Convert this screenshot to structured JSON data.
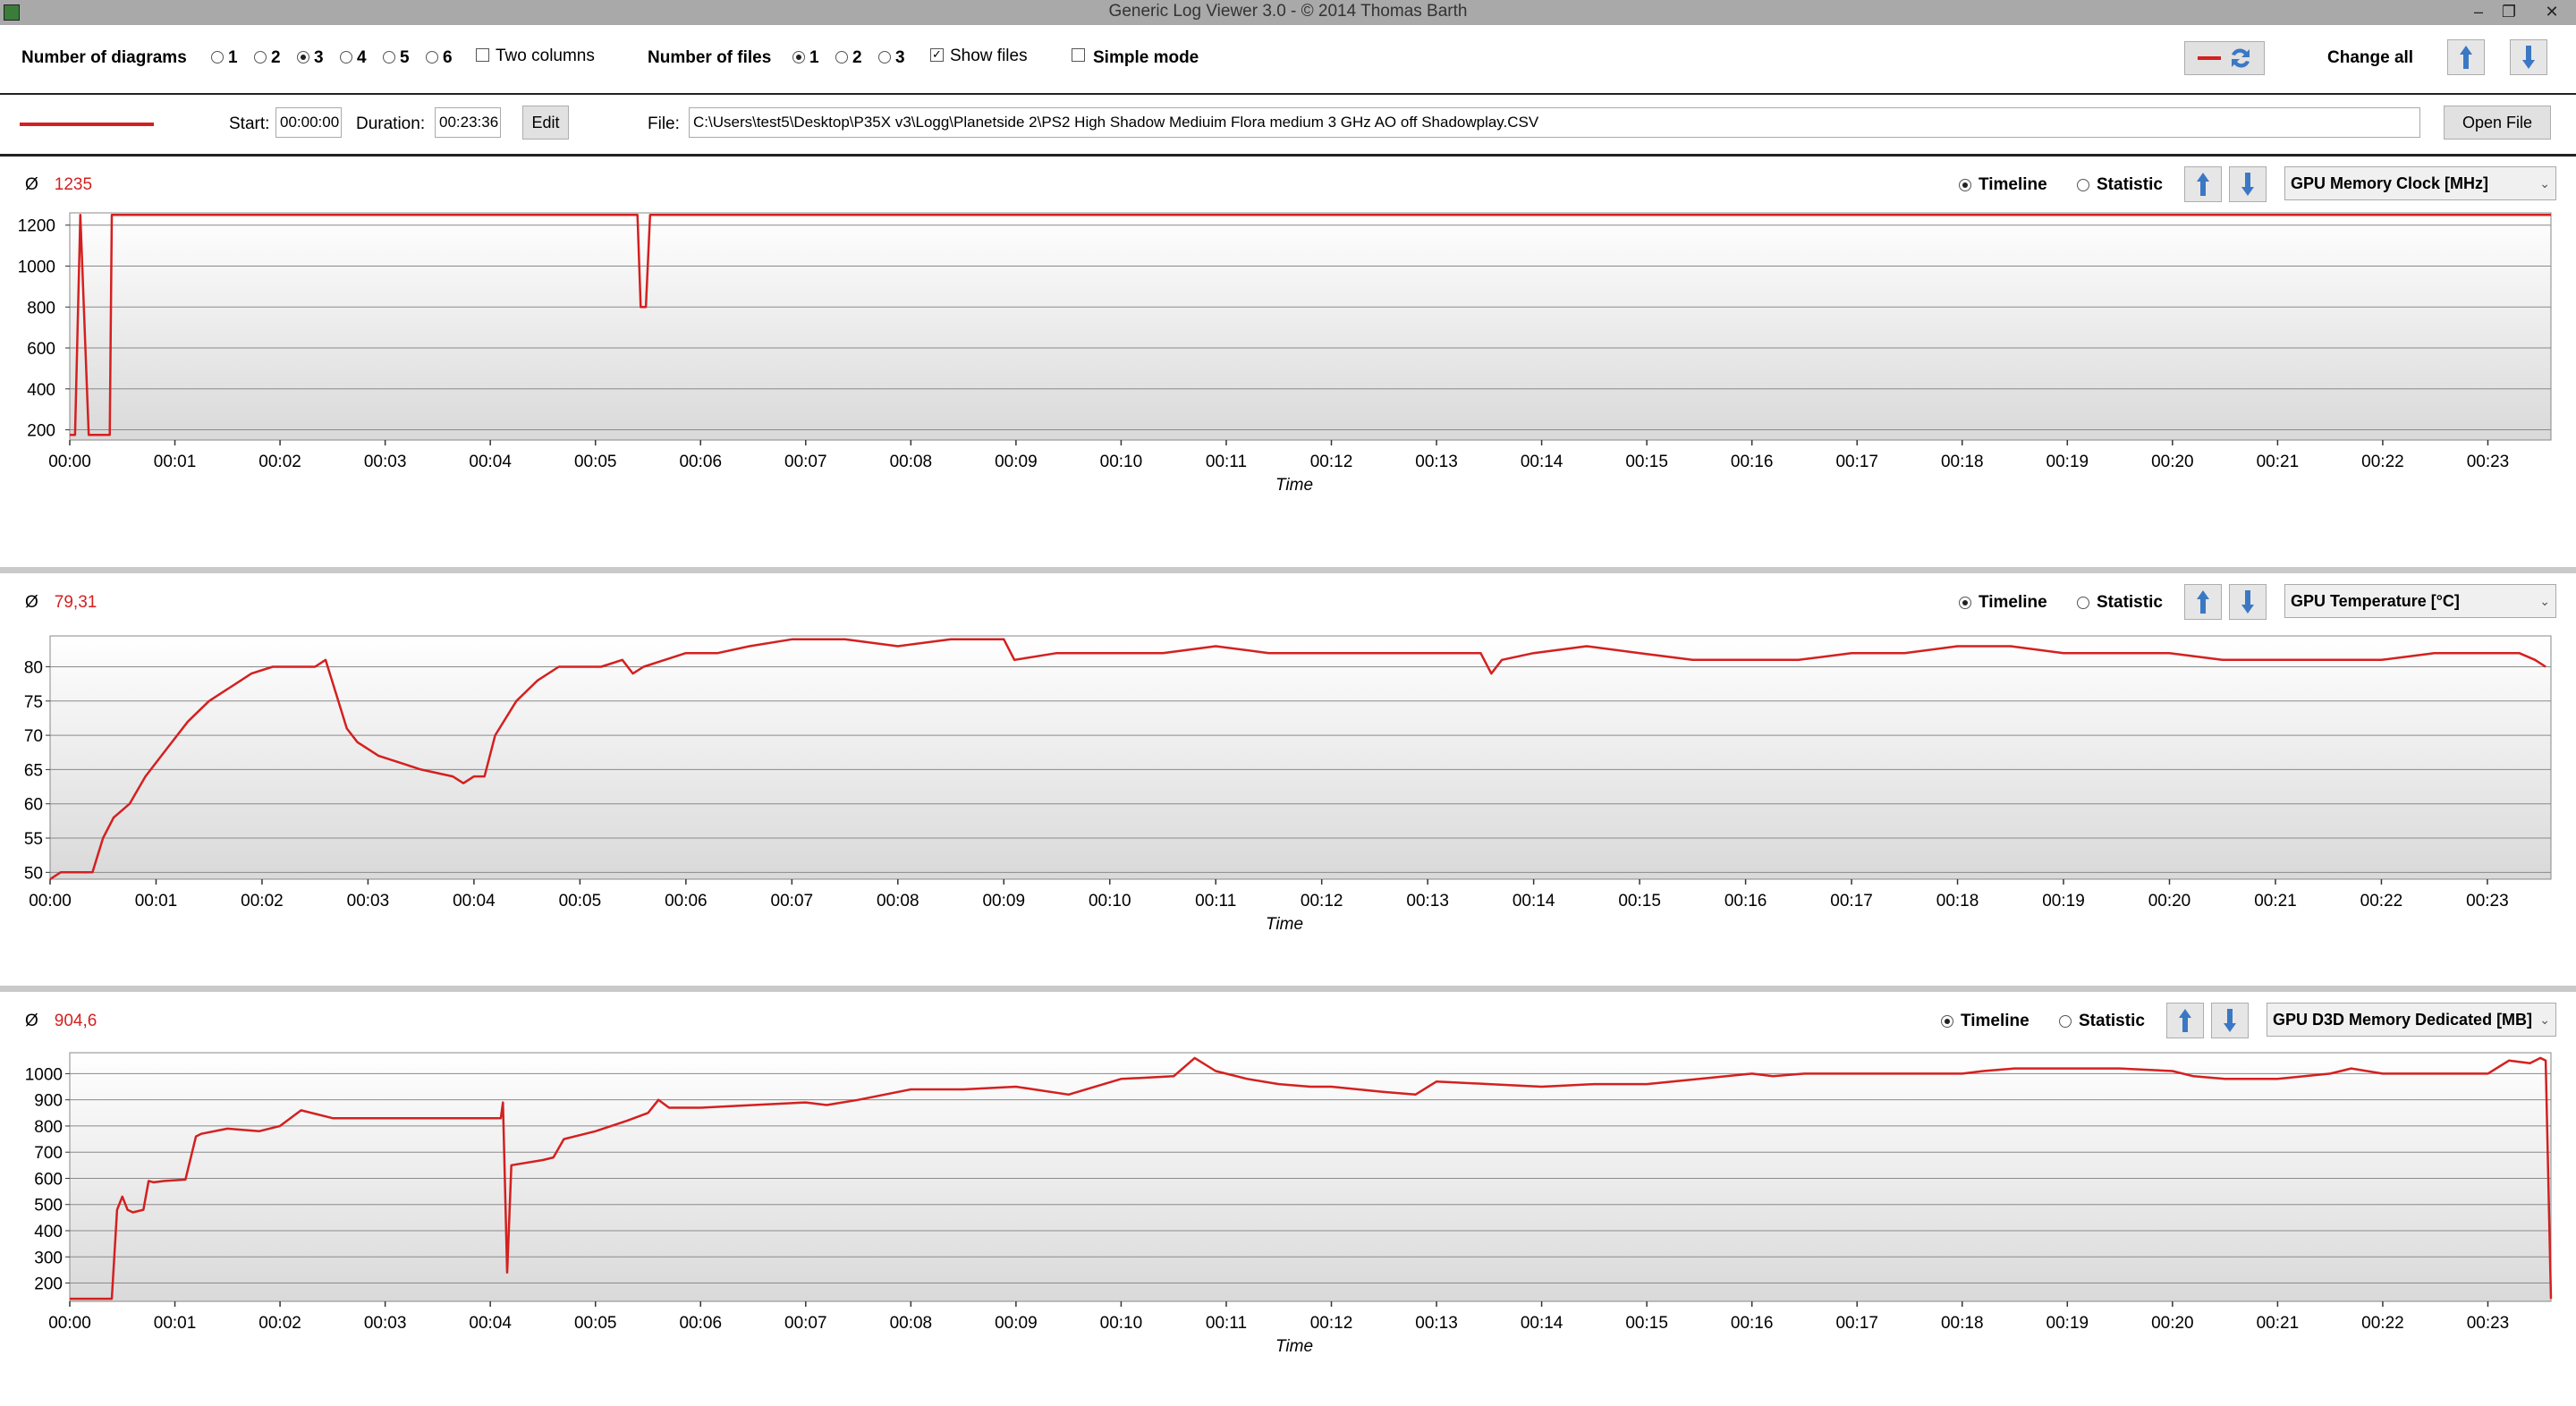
{
  "window": {
    "title": "Generic Log Viewer 3.0 - © 2014 Thomas Barth"
  },
  "toolbar": {
    "diagrams_label": "Number of diagrams",
    "diagram_options": [
      "1",
      "2",
      "3",
      "4",
      "5",
      "6"
    ],
    "diagrams_selected": "3",
    "two_columns_label": "Two columns",
    "two_columns_checked": false,
    "files_label": "Number of files",
    "file_options": [
      "1",
      "2",
      "3"
    ],
    "files_selected": "1",
    "show_files_label": "Show files",
    "show_files_checked": true,
    "simple_mode_label": "Simple mode",
    "simple_mode_checked": false,
    "change_all_label": "Change all"
  },
  "filebar": {
    "line_color": "#d42020",
    "start_label": "Start:",
    "start_value": "00:00:00",
    "duration_label": "Duration:",
    "duration_value": "00:23:36",
    "edit_label": "Edit",
    "file_label": "File:",
    "file_path": "C:\\Users\\test5\\Desktop\\P35X v3\\Logg\\Planetside 2\\PS2 High Shadow Mediuim Flora medium 3 GHz AO off Shadowplay.CSV",
    "open_file_label": "Open File"
  },
  "panels": [
    {
      "avg_symbol": "Ø",
      "avg_value": "1235",
      "timeline_label": "Timeline",
      "statistic_label": "Statistic",
      "mode": "timeline",
      "sensor": "GPU Memory Clock [MHz]"
    },
    {
      "avg_symbol": "Ø",
      "avg_value": "79,31",
      "timeline_label": "Timeline",
      "statistic_label": "Statistic",
      "mode": "timeline",
      "sensor": "GPU Temperature [°C]"
    },
    {
      "avg_symbol": "Ø",
      "avg_value": "904,6",
      "timeline_label": "Timeline",
      "statistic_label": "Statistic",
      "mode": "timeline",
      "sensor": "GPU D3D Memory Dedicated [MB]"
    }
  ],
  "colors": {
    "series": "#d42020",
    "accent_arrow": "#3b78c4"
  },
  "chart_data": [
    {
      "type": "line",
      "xlabel": "Time",
      "ylabel": "",
      "x_ticks": [
        "00:00",
        "00:01",
        "00:02",
        "00:03",
        "00:04",
        "00:05",
        "00:06",
        "00:07",
        "00:08",
        "00:09",
        "00:10",
        "00:11",
        "00:12",
        "00:13",
        "00:14",
        "00:15",
        "00:16",
        "00:17",
        "00:18",
        "00:19",
        "00:20",
        "00:21",
        "00:22",
        "00:23"
      ],
      "y_ticks": [
        200,
        400,
        600,
        800,
        1000,
        1200
      ],
      "xlim": [
        0,
        23.6
      ],
      "ylim": [
        150,
        1260
      ],
      "grid": true,
      "series": [
        {
          "x": [
            0,
            0.05,
            0.1,
            0.18,
            0.3,
            0.38,
            0.4,
            5.4,
            5.43,
            5.48,
            5.52,
            23.6
          ],
          "y": [
            175,
            175,
            1250,
            175,
            175,
            175,
            1250,
            1250,
            800,
            800,
            1250,
            1250
          ]
        }
      ]
    },
    {
      "type": "line",
      "xlabel": "Time",
      "ylabel": "",
      "x_ticks": [
        "00:00",
        "00:01",
        "00:02",
        "00:03",
        "00:04",
        "00:05",
        "00:06",
        "00:07",
        "00:08",
        "00:09",
        "00:10",
        "00:11",
        "00:12",
        "00:13",
        "00:14",
        "00:15",
        "00:16",
        "00:17",
        "00:18",
        "00:19",
        "00:20",
        "00:21",
        "00:22",
        "00:23"
      ],
      "y_ticks": [
        50,
        55,
        60,
        65,
        70,
        75,
        80
      ],
      "xlim": [
        0,
        23.6
      ],
      "ylim": [
        49,
        84.5
      ],
      "grid": true,
      "series": [
        {
          "x": [
            0,
            0.1,
            0.4,
            0.5,
            0.6,
            0.75,
            0.9,
            1.1,
            1.3,
            1.5,
            1.7,
            1.9,
            2.1,
            2.5,
            2.6,
            2.7,
            2.8,
            2.9,
            3.1,
            3.3,
            3.5,
            3.8,
            3.9,
            4.0,
            4.1,
            4.2,
            4.4,
            4.6,
            4.8,
            5.0,
            5.2,
            5.4,
            5.5,
            5.6,
            5.8,
            6.0,
            6.3,
            6.6,
            7.0,
            7.5,
            8.0,
            8.5,
            9.0,
            9.1,
            9.5,
            10.0,
            10.5,
            11.0,
            11.5,
            12.0,
            12.5,
            13.0,
            13.5,
            13.6,
            13.7,
            14.0,
            14.5,
            15.0,
            15.5,
            16.0,
            16.5,
            17.0,
            17.5,
            18.0,
            18.5,
            19.0,
            19.5,
            20.0,
            20.5,
            21.0,
            21.5,
            22.0,
            22.5,
            23.0,
            23.3,
            23.45,
            23.55
          ],
          "y": [
            49,
            50,
            50,
            55,
            58,
            60,
            64,
            68,
            72,
            75,
            77,
            79,
            80,
            80,
            81,
            76,
            71,
            69,
            67,
            66,
            65,
            64,
            63,
            64,
            64,
            70,
            75,
            78,
            80,
            80,
            80,
            81,
            79,
            80,
            81,
            82,
            82,
            83,
            84,
            84,
            83,
            84,
            84,
            81,
            82,
            82,
            82,
            83,
            82,
            82,
            82,
            82,
            82,
            79,
            81,
            82,
            83,
            82,
            81,
            81,
            81,
            82,
            82,
            83,
            83,
            82,
            82,
            82,
            81,
            81,
            81,
            81,
            82,
            82,
            82,
            81,
            80
          ]
        }
      ]
    },
    {
      "type": "line",
      "xlabel": "Time",
      "ylabel": "",
      "x_ticks": [
        "00:00",
        "00:01",
        "00:02",
        "00:03",
        "00:04",
        "00:05",
        "00:06",
        "00:07",
        "00:08",
        "00:09",
        "00:10",
        "00:11",
        "00:12",
        "00:13",
        "00:14",
        "00:15",
        "00:16",
        "00:17",
        "00:18",
        "00:19",
        "00:20",
        "00:21",
        "00:22",
        "00:23"
      ],
      "y_ticks": [
        200,
        300,
        400,
        500,
        600,
        700,
        800,
        900,
        1000
      ],
      "xlim": [
        0,
        23.6
      ],
      "ylim": [
        130,
        1080
      ],
      "grid": true,
      "series": [
        {
          "x": [
            0,
            0.4,
            0.45,
            0.5,
            0.55,
            0.6,
            0.7,
            0.75,
            0.8,
            0.9,
            1.1,
            1.2,
            1.25,
            1.5,
            1.8,
            2.0,
            2.2,
            2.5,
            2.6,
            2.65,
            4.1,
            4.12,
            4.16,
            4.2,
            4.5,
            4.6,
            4.7,
            5.0,
            5.3,
            5.5,
            5.6,
            5.7,
            6.0,
            6.5,
            7.0,
            7.2,
            7.5,
            8.0,
            8.5,
            9.0,
            9.5,
            10.0,
            10.5,
            10.7,
            10.9,
            11.2,
            11.5,
            11.8,
            12.0,
            12.5,
            12.8,
            13.0,
            13.5,
            14.0,
            14.5,
            15.0,
            15.5,
            16.0,
            16.2,
            16.5,
            17.0,
            17.5,
            18.0,
            18.2,
            18.5,
            19.0,
            19.5,
            20.0,
            20.2,
            20.5,
            21.0,
            21.5,
            21.7,
            22.0,
            22.5,
            23.0,
            23.2,
            23.4,
            23.5,
            23.55,
            23.6
          ],
          "y": [
            140,
            140,
            480,
            530,
            480,
            470,
            480,
            590,
            585,
            590,
            595,
            760,
            770,
            790,
            780,
            800,
            860,
            830,
            830,
            830,
            830,
            890,
            240,
            650,
            670,
            680,
            750,
            780,
            820,
            850,
            900,
            870,
            870,
            880,
            890,
            880,
            900,
            940,
            940,
            950,
            920,
            980,
            990,
            1060,
            1010,
            980,
            960,
            950,
            950,
            930,
            920,
            970,
            960,
            950,
            960,
            960,
            980,
            1000,
            990,
            1000,
            1000,
            1000,
            1000,
            1010,
            1020,
            1020,
            1020,
            1010,
            990,
            980,
            980,
            1000,
            1020,
            1000,
            1000,
            1000,
            1050,
            1040,
            1060,
            1050,
            140
          ]
        }
      ]
    }
  ]
}
